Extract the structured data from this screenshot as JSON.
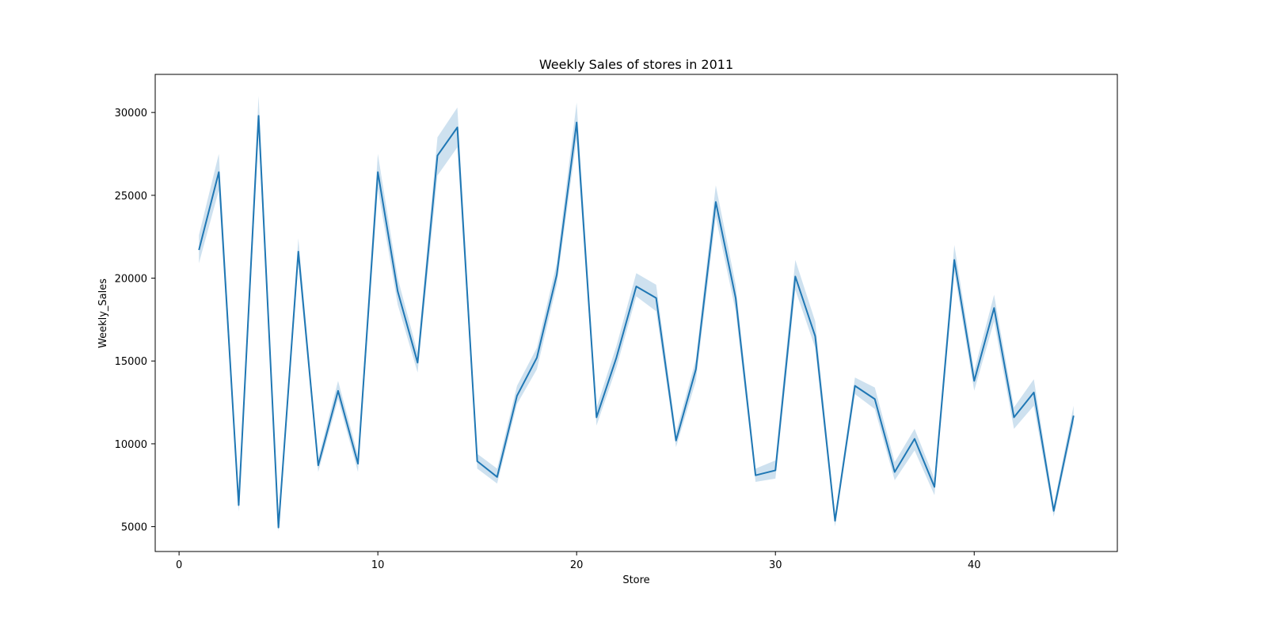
{
  "chart_data": {
    "type": "line",
    "title": "Weekly Sales of stores in 2011",
    "xlabel": "Store",
    "ylabel": "Weekly_Sales",
    "xlim": [
      -1.2,
      47.2
    ],
    "ylim": [
      3500,
      32300
    ],
    "xticks": [
      0,
      10,
      20,
      30,
      40
    ],
    "yticks": [
      5000,
      10000,
      15000,
      20000,
      25000,
      30000
    ],
    "grid": false,
    "legend": "none",
    "series": [
      {
        "color": "#1f77b4",
        "band_color": "#1f77b4",
        "x": [
          1,
          2,
          3,
          4,
          5,
          6,
          7,
          8,
          9,
          10,
          11,
          12,
          13,
          14,
          15,
          16,
          17,
          18,
          19,
          20,
          21,
          22,
          23,
          24,
          25,
          26,
          27,
          28,
          29,
          30,
          31,
          32,
          33,
          34,
          35,
          36,
          37,
          38,
          39,
          40,
          41,
          42,
          43,
          44,
          45
        ],
        "values": [
          21700,
          26400,
          6300,
          29800,
          4950,
          21600,
          8700,
          13200,
          8800,
          26400,
          19200,
          14900,
          27400,
          29100,
          8950,
          8000,
          12900,
          15200,
          20200,
          29400,
          11600,
          15200,
          19500,
          18800,
          10200,
          14500,
          24600,
          18800,
          8100,
          8400,
          20100,
          16500,
          5350,
          13500,
          12700,
          8300,
          10300,
          7400,
          21100,
          13800,
          18200,
          11600,
          13100,
          5950,
          11700
        ],
        "lower": [
          20900,
          25300,
          5900,
          28700,
          4700,
          20900,
          8300,
          12700,
          8300,
          25400,
          18400,
          14300,
          26200,
          27900,
          8500,
          7600,
          12400,
          14500,
          19600,
          28400,
          11100,
          14600,
          18900,
          18000,
          9800,
          13800,
          23700,
          18000,
          7700,
          7900,
          19300,
          15800,
          5000,
          13000,
          12100,
          7800,
          9600,
          6900,
          20400,
          13200,
          17400,
          10900,
          12300,
          5600,
          11200
        ],
        "upper": [
          22600,
          27500,
          6800,
          31000,
          5300,
          22400,
          9100,
          13800,
          9300,
          27500,
          20000,
          15500,
          28500,
          30300,
          9400,
          8500,
          13500,
          15800,
          20900,
          30600,
          12200,
          15900,
          20300,
          19600,
          10700,
          15100,
          25600,
          19600,
          8500,
          9000,
          21100,
          17400,
          5700,
          14000,
          13400,
          8900,
          10900,
          7900,
          22000,
          14400,
          19000,
          12200,
          13900,
          6300,
          12300
        ]
      }
    ]
  }
}
